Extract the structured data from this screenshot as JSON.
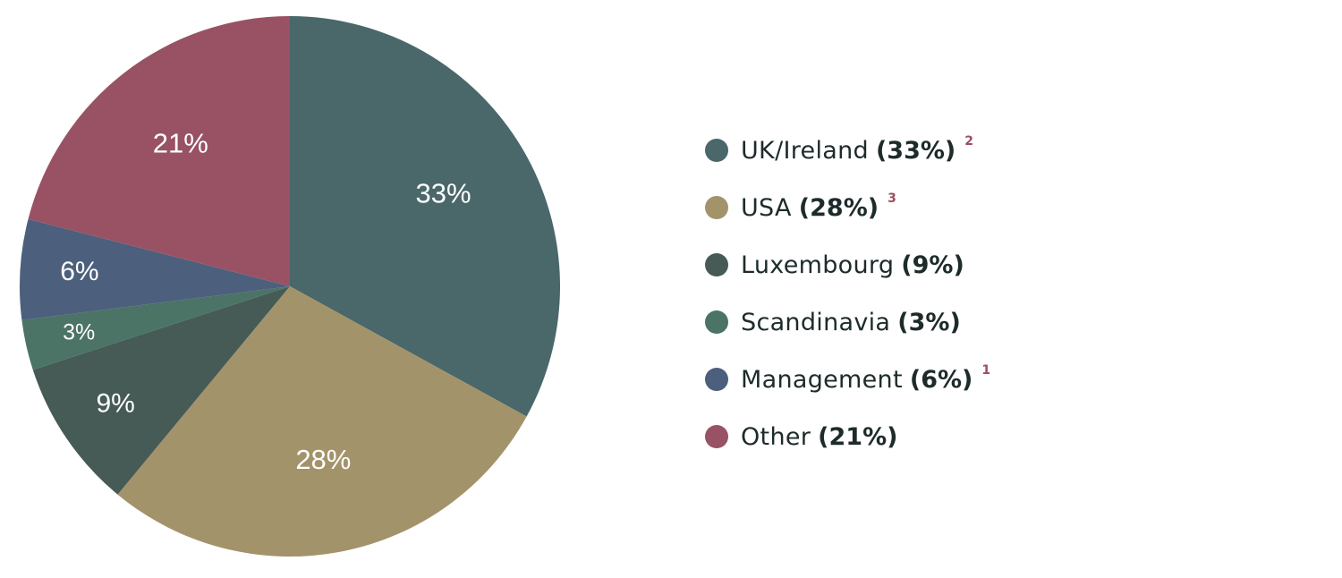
{
  "chart_data": {
    "type": "pie",
    "slices": [
      {
        "label": "UK/Ireland",
        "value": 33,
        "color": "#4a676a",
        "data_label": "33%",
        "legend_pct": "(33%)",
        "footnote": "2"
      },
      {
        "label": "USA",
        "value": 28,
        "color": "#a3936b",
        "data_label": "28%",
        "legend_pct": "(28%)",
        "footnote": "3"
      },
      {
        "label": "Luxembourg",
        "value": 9,
        "color": "#465a56",
        "data_label": "9%",
        "legend_pct": "(9%)",
        "footnote": ""
      },
      {
        "label": "Scandinavia",
        "value": 3,
        "color": "#4b7366",
        "data_label": "3%",
        "legend_pct": "(3%)",
        "footnote": ""
      },
      {
        "label": "Management",
        "value": 6,
        "color": "#4c5f7d",
        "data_label": "6%",
        "legend_pct": "(6%)",
        "footnote": "1"
      },
      {
        "label": "Other",
        "value": 21,
        "color": "#985264",
        "data_label": "21%",
        "legend_pct": "(21%)",
        "footnote": ""
      }
    ],
    "start_angle_deg": 0,
    "direction": "clockwise",
    "legend_position": "right"
  }
}
